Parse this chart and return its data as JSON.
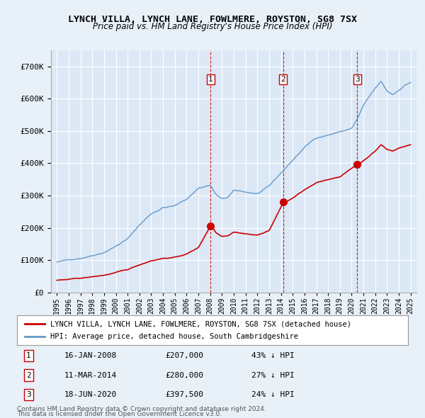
{
  "title": "LYNCH VILLA, LYNCH LANE, FOWLMERE, ROYSTON, SG8 7SX",
  "subtitle": "Price paid vs. HM Land Registry's House Price Index (HPI)",
  "red_label": "LYNCH VILLA, LYNCH LANE, FOWLMERE, ROYSTON, SG8 7SX (detached house)",
  "blue_label": "HPI: Average price, detached house, South Cambridgeshire",
  "transactions": [
    {
      "num": 1,
      "date": "16-JAN-2008",
      "price": 207000,
      "pct": "43%",
      "x": 2008.04
    },
    {
      "num": 2,
      "date": "11-MAR-2014",
      "price": 280000,
      "pct": "27%",
      "x": 2014.19
    },
    {
      "num": 3,
      "date": "18-JUN-2020",
      "price": 397500,
      "pct": "24%",
      "x": 2020.46
    }
  ],
  "footnote1": "Contains HM Land Registry data © Crown copyright and database right 2024.",
  "footnote2": "This data is licensed under the Open Government Licence v3.0.",
  "background_color": "#e8f0f8",
  "plot_bg": "#dce8f5",
  "grid_color": "#ffffff",
  "red_color": "#cc0000",
  "blue_color": "#6699cc",
  "vline_color": "#cc0000",
  "marker_color": "#cc0000",
  "ylim": [
    0,
    750000
  ],
  "xlim": [
    1994.5,
    2025.5
  ]
}
